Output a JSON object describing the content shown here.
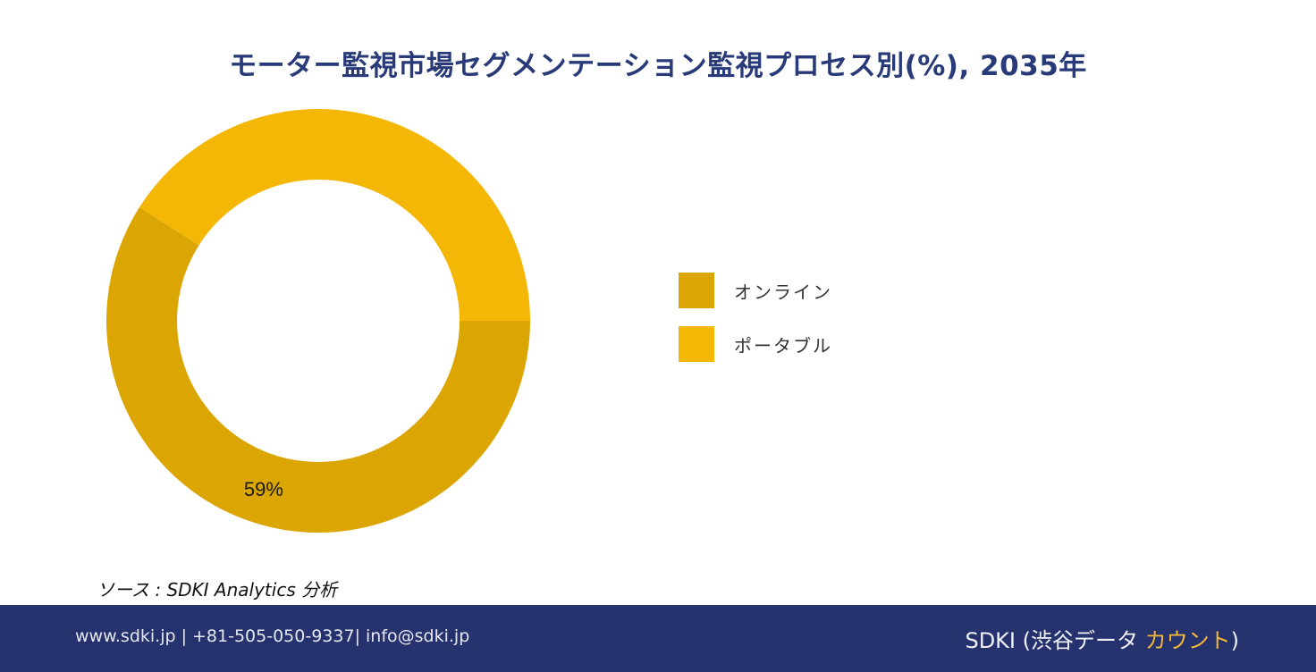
{
  "title": "モーター監視市場セグメンテーション監視プロセス別(%), 2035年",
  "colors": {
    "title": "#283a78",
    "online": "#dba503",
    "portable": "#f4b705",
    "footer_bg": "#26326e",
    "footer_accent": "#f3b73a"
  },
  "chart_data": {
    "type": "pie",
    "subtype": "donut",
    "title": "モーター監視市場セグメンテーション監視プロセス別(%), 2035年",
    "categories": [
      "オンライン",
      "ポータブル"
    ],
    "values": [
      59,
      41
    ],
    "units": "%",
    "data_labels": [
      "59%",
      ""
    ],
    "start_angle": "3 o'clock, clockwise",
    "legend_position": "right"
  },
  "legend": {
    "items": [
      {
        "label": "オンライン",
        "color": "#dba503"
      },
      {
        "label": "ポータブル",
        "color": "#f4b705"
      }
    ]
  },
  "donut": {
    "label_online": "59%"
  },
  "source": "ソース : SDKI Analytics 分析",
  "footer": {
    "contact": "www.sdki.jp | +81-505-050-9337| info@sdki.jp",
    "brand_prefix": "SDKI (渋谷データ ",
    "brand_accent": "カウント",
    "brand_suffix": ")"
  }
}
